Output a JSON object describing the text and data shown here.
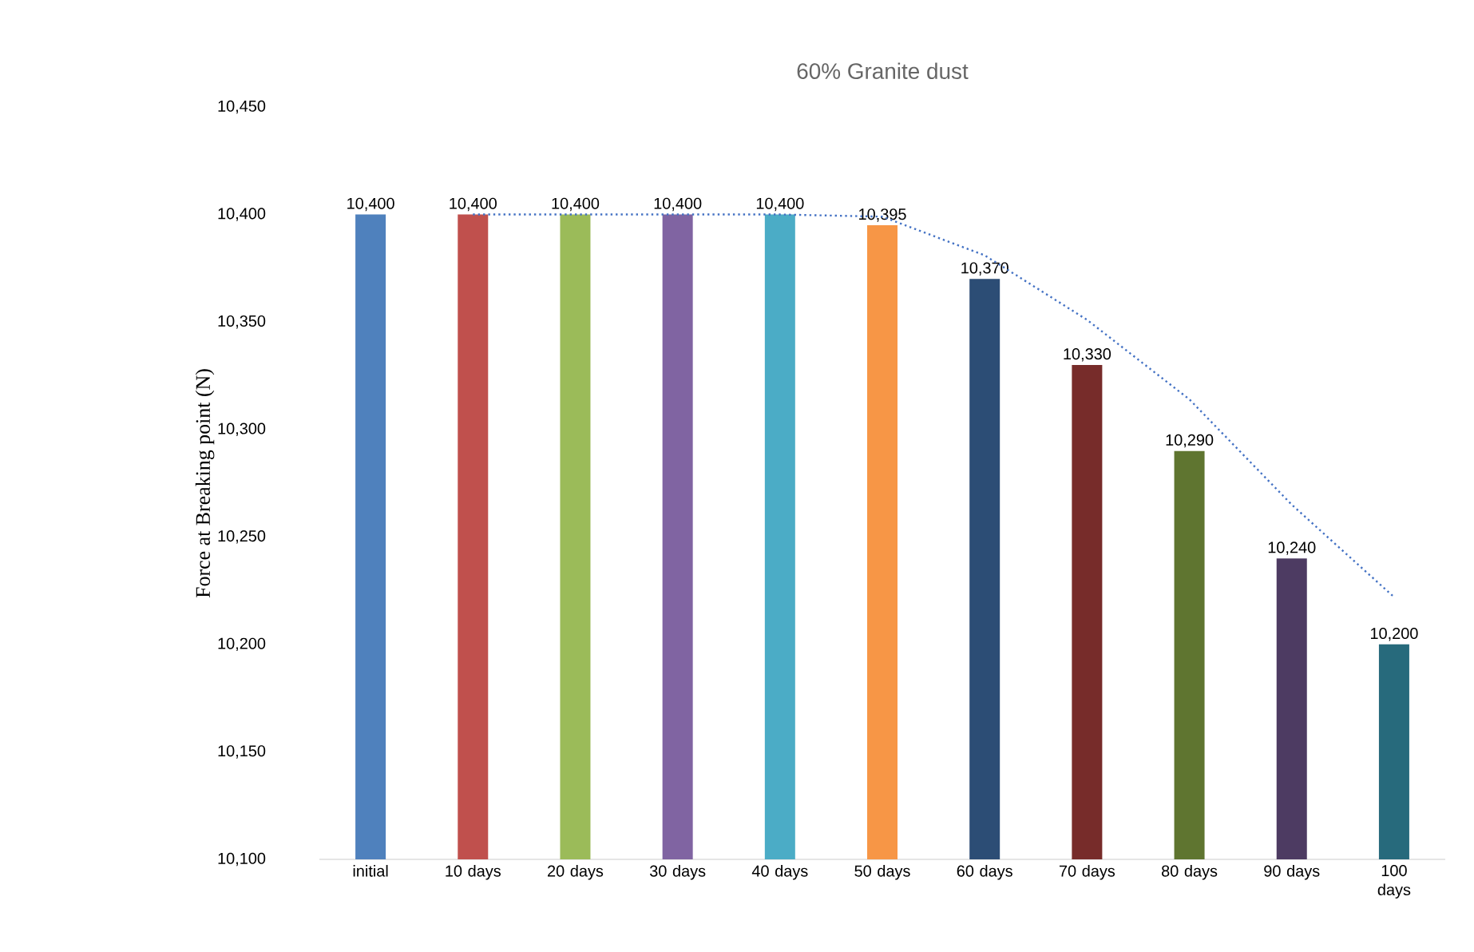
{
  "chart_data": {
    "type": "bar",
    "title": "60% Granite dust",
    "ylabel": "Force at Breaking point (N)",
    "categories": [
      "initial",
      "10 days",
      "20 days",
      "30 days",
      "40 days",
      "50 days",
      "60 days",
      "70 days",
      "80 days",
      "90 days",
      "100 days"
    ],
    "series": [
      {
        "values": [
          10400,
          10400,
          10400,
          10400,
          10400,
          10395,
          10370,
          10330,
          10290,
          10240,
          10200
        ],
        "value_labels": [
          "10,400",
          "10,400",
          "10,400",
          "10,400",
          "10,400",
          "10,395",
          "10,370",
          "10,330",
          "10,290",
          "10,240",
          "10,200"
        ],
        "colors": [
          "#4f81bd",
          "#c0504d",
          "#9bbb59",
          "#8064a2",
          "#4bacc6",
          "#f79646",
          "#2c4d75",
          "#772c2a",
          "#5f7530",
          "#4d3b62",
          "#276a7c"
        ]
      },
      {
        "type": "line",
        "line_style": "dotted",
        "color": "#4472c4",
        "values": [
          null,
          10400,
          10400,
          10400,
          10400,
          10399,
          10381,
          10351,
          10314,
          10265,
          10222
        ]
      }
    ],
    "ylim": [
      10100,
      10450
    ],
    "yticks": [
      {
        "value": 10100,
        "label": "10,100"
      },
      {
        "value": 10150,
        "label": "10,150"
      },
      {
        "value": 10200,
        "label": "10,200"
      },
      {
        "value": 10250,
        "label": "10,250"
      },
      {
        "value": 10300,
        "label": "10,300"
      },
      {
        "value": 10350,
        "label": "10,350"
      },
      {
        "value": 10400,
        "label": "10,400"
      },
      {
        "value": 10450,
        "label": "10,450"
      }
    ]
  }
}
